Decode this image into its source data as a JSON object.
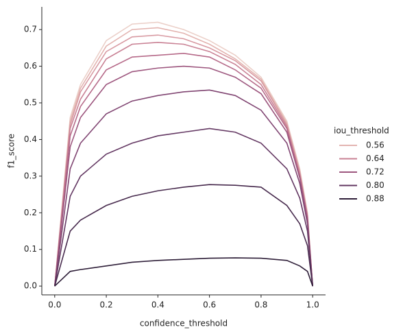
{
  "chart_data": {
    "type": "line",
    "x_label": "confidence_threshold",
    "y_label": "f1_score",
    "x": [
      0,
      0.06,
      0.1,
      0.2,
      0.3,
      0.4,
      0.5,
      0.6,
      0.7,
      0.8,
      0.9,
      0.95,
      0.98,
      1.0
    ],
    "series": [
      {
        "color": "#ebcfc8",
        "values": [
          0,
          0.46,
          0.55,
          0.67,
          0.715,
          0.72,
          0.7,
          0.67,
          0.63,
          0.57,
          0.45,
          0.32,
          0.2,
          0
        ]
      },
      {
        "color": "#e3b4b0",
        "values": [
          0,
          0.45,
          0.54,
          0.655,
          0.7,
          0.705,
          0.69,
          0.66,
          0.62,
          0.565,
          0.445,
          0.315,
          0.195,
          0
        ]
      },
      {
        "color": "#d89aa2",
        "values": [
          0,
          0.44,
          0.53,
          0.64,
          0.68,
          0.685,
          0.675,
          0.65,
          0.615,
          0.56,
          0.44,
          0.31,
          0.19,
          0
        ]
      },
      {
        "color": "#c98194",
        "values": [
          0,
          0.43,
          0.51,
          0.62,
          0.66,
          0.665,
          0.66,
          0.64,
          0.605,
          0.55,
          0.435,
          0.305,
          0.19,
          0
        ]
      },
      {
        "color": "#b66a89",
        "values": [
          0,
          0.41,
          0.49,
          0.59,
          0.625,
          0.63,
          0.635,
          0.625,
          0.59,
          0.54,
          0.43,
          0.3,
          0.185,
          0
        ]
      },
      {
        "color": "#9d567e",
        "values": [
          0,
          0.38,
          0.46,
          0.55,
          0.585,
          0.595,
          0.6,
          0.595,
          0.57,
          0.525,
          0.42,
          0.295,
          0.18,
          0
        ]
      },
      {
        "color": "#804572",
        "values": [
          0,
          0.32,
          0.39,
          0.47,
          0.505,
          0.52,
          0.53,
          0.535,
          0.52,
          0.48,
          0.39,
          0.28,
          0.17,
          0
        ]
      },
      {
        "color": "#633762",
        "values": [
          0,
          0.245,
          0.3,
          0.36,
          0.39,
          0.41,
          0.42,
          0.43,
          0.42,
          0.39,
          0.32,
          0.24,
          0.15,
          0
        ]
      },
      {
        "color": "#472a4d",
        "values": [
          0,
          0.15,
          0.18,
          0.22,
          0.245,
          0.26,
          0.27,
          0.277,
          0.275,
          0.27,
          0.22,
          0.17,
          0.11,
          0
        ]
      },
      {
        "color": "#2e1e38",
        "values": [
          0,
          0.04,
          0.045,
          0.055,
          0.065,
          0.07,
          0.073,
          0.076,
          0.077,
          0.076,
          0.07,
          0.055,
          0.04,
          0
        ]
      }
    ],
    "legend": {
      "title": "iou_threshold",
      "entries": [
        {
          "label": "0.56",
          "color": "#e3b4b0"
        },
        {
          "label": "0.64",
          "color": "#c98194"
        },
        {
          "label": "0.72",
          "color": "#9d567e"
        },
        {
          "label": "0.80",
          "color": "#633762"
        },
        {
          "label": "0.88",
          "color": "#2e1e38"
        }
      ]
    },
    "xlim": [
      -0.05,
      1.05
    ],
    "ylim": [
      -0.024,
      0.762
    ],
    "xticks": [
      {
        "value": 0,
        "label": "0.0"
      },
      0.2,
      0.4,
      0.6,
      0.8,
      {
        "value": 1,
        "label": "1.0"
      }
    ],
    "yticks": [
      {
        "value": 0,
        "label": "0.0"
      },
      0.1,
      0.2,
      0.3,
      0.4,
      0.5,
      0.6,
      0.7
    ]
  }
}
